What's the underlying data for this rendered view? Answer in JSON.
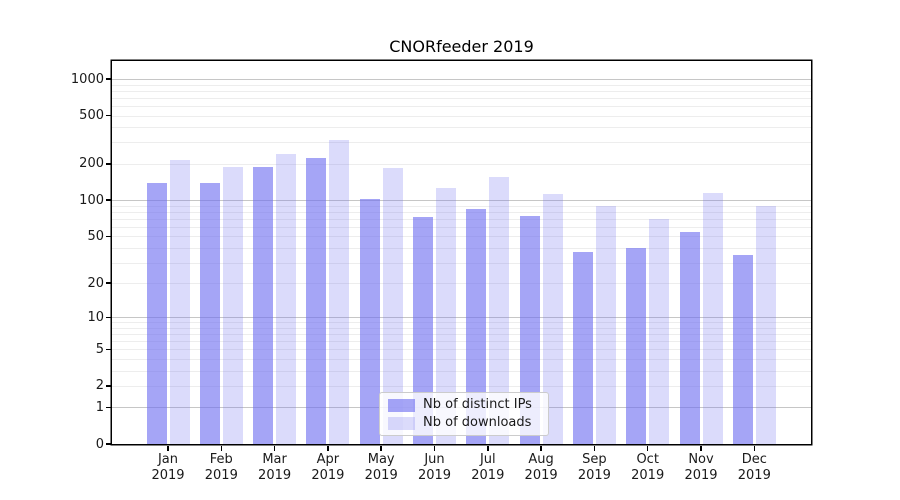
{
  "chart_data": {
    "type": "bar",
    "title": "CNORfeeder 2019",
    "categories": [
      "Jan",
      "Feb",
      "Mar",
      "Apr",
      "May",
      "Jun",
      "Jul",
      "Aug",
      "Sep",
      "Oct",
      "Nov",
      "Dec"
    ],
    "x_tick_year": "2019",
    "series": [
      {
        "name": "Nb of distinct IPs",
        "color": "rgba(110,110,240,0.62)",
        "values": [
          138,
          140,
          190,
          222,
          102,
          72,
          85,
          74,
          37,
          40,
          54,
          35
        ]
      },
      {
        "name": "Nb of downloads",
        "color": "rgba(110,110,240,0.25)",
        "values": [
          215,
          190,
          240,
          315,
          186,
          125,
          155,
          112,
          90,
          70,
          114,
          89
        ]
      }
    ],
    "y_scale": "log1p",
    "y_ticks": [
      0,
      1,
      2,
      5,
      10,
      20,
      50,
      100,
      200,
      500,
      1000
    ],
    "y_major_gridlines": [
      1,
      10,
      100,
      1000
    ],
    "ylim": [
      0,
      1400
    ],
    "grid": true,
    "legend_position": "lower-center",
    "xlabel": "",
    "ylabel": ""
  },
  "colors": {
    "bar_base": "#6e6ef0",
    "major_grid": "#c6c6c6",
    "minor_grid": "#ededed",
    "spine": "#000000",
    "text": "#1a1a1a",
    "legend_border": "#cccccc"
  }
}
